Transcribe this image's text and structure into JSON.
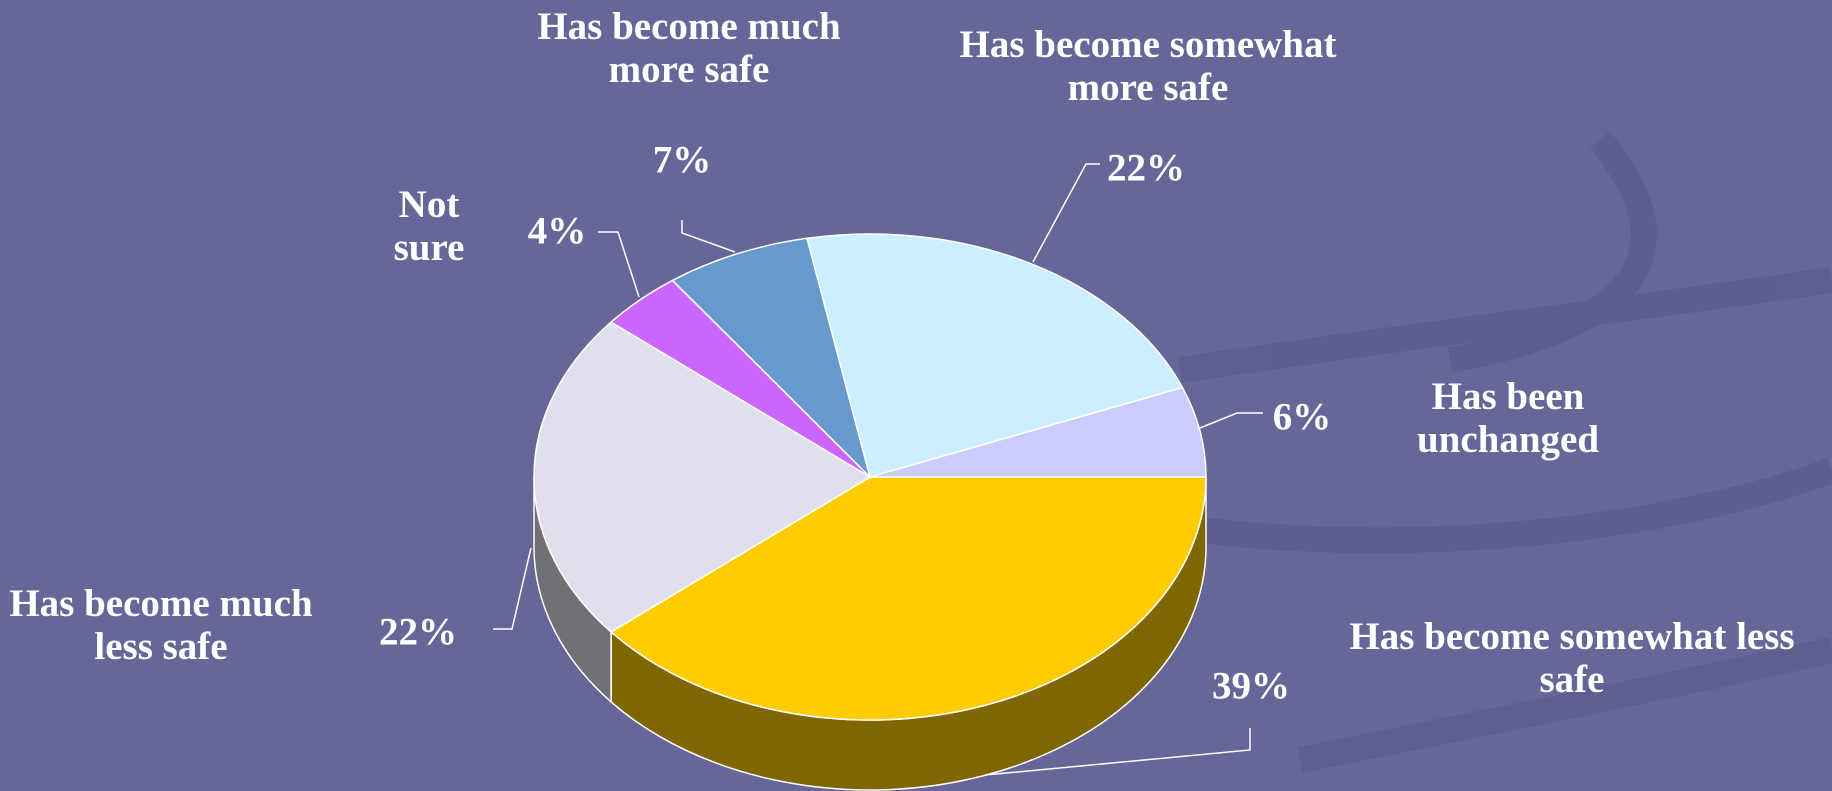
{
  "chart_data": {
    "type": "pie",
    "categories": [
      "Has become somewhat less safe",
      "Has become much less safe",
      "Not sure",
      "Has become much more safe",
      "Has become somewhat more safe",
      "Has been unchanged"
    ],
    "values": [
      39,
      22,
      4,
      7,
      22,
      6
    ],
    "value_labels": [
      "39%",
      "22%",
      "4%",
      "7%",
      "22%",
      "6%"
    ],
    "colors": [
      "#ffcc00",
      "#e0e0ec",
      "#cc66ff",
      "#6699cc",
      "#cceeff",
      "#ccccff"
    ]
  }
}
